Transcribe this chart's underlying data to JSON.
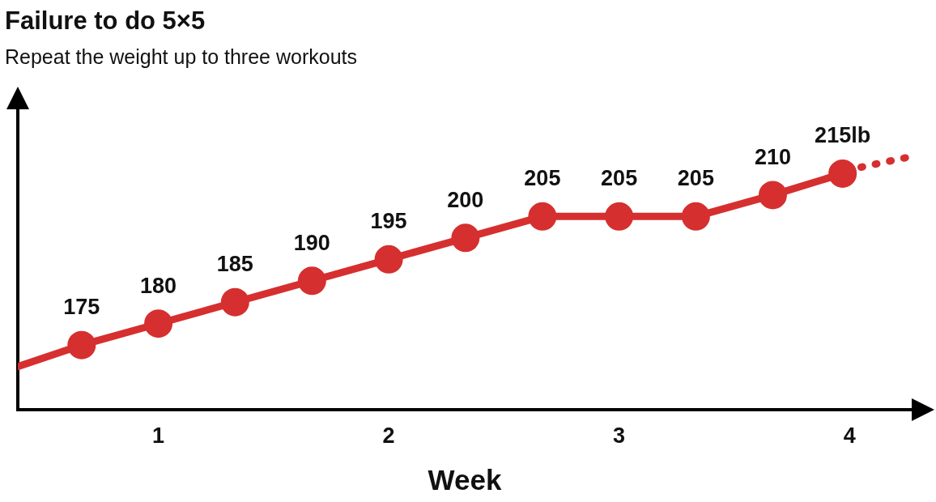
{
  "chart_data": {
    "type": "line",
    "title": "Failure to do 5×5",
    "subtitle": "Repeat the weight up to three workouts",
    "xlabel": "Week",
    "xlim": [
      0.39,
      4.27
    ],
    "xticks": [
      1,
      2,
      3,
      4
    ],
    "tick_labels": "x",
    "grid": false,
    "legend": false,
    "marker": "circle",
    "line_style": "solid",
    "series": [
      {
        "color": "#d62f2f",
        "x": [
          0.667,
          1,
          1.333,
          1.667,
          2,
          2.333,
          2.667,
          3,
          3.333,
          3.667,
          3.97
        ],
        "values": [
          175,
          180,
          185,
          190,
          195,
          200,
          205,
          205,
          205,
          210,
          215
        ],
        "value_labels": [
          "175",
          "180",
          "185",
          "190",
          "195",
          "200",
          "205",
          "205",
          "205",
          "210",
          "215lb"
        ]
      },
      {
        "color": "#d62f2f",
        "x": [
          0.39,
          0.667
        ],
        "values": [
          170,
          175
        ],
        "marker": "none"
      },
      {
        "color": "#d62f2f",
        "x": [
          4.05,
          4.27
        ],
        "values": [
          216.5,
          219
        ],
        "marker": "none",
        "line_style": "dotted"
      }
    ]
  }
}
